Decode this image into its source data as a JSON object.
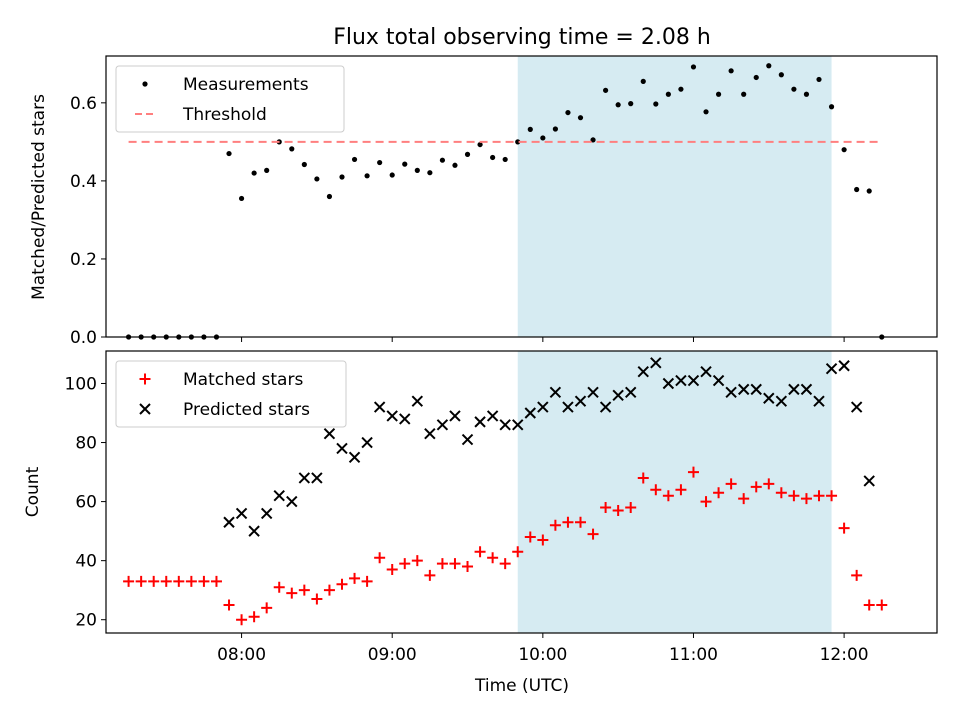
{
  "chart_data": {
    "title": "Flux total observing time = 2.08 h",
    "xlabel": "Time (UTC)",
    "x_unit": "hours UTC",
    "xlim": [
      "07:06",
      "12:37"
    ],
    "xticks": [
      {
        "time": "08:00",
        "label": "08:00"
      },
      {
        "time": "09:00",
        "label": "09:00"
      },
      {
        "time": "10:00",
        "label": "10:00"
      },
      {
        "time": "11:00",
        "label": "11:00"
      },
      {
        "time": "12:00",
        "label": "12:00"
      }
    ],
    "highlight_span": {
      "start": "09:50",
      "end": "11:55",
      "color": "#add8e6"
    },
    "panels": [
      {
        "type": "scatter",
        "ylabel": "Matched/Predicted stars",
        "ylim": [
          0,
          0.72
        ],
        "yticks": [
          0.0,
          0.2,
          0.4,
          0.6
        ],
        "ytick_labels": [
          "0.0",
          "0.2",
          "0.4",
          "0.6"
        ],
        "legend_position": "upper-left",
        "series": [
          {
            "name": "Measurements",
            "marker": "dot",
            "color": "#000000",
            "points": [
              [
                "07:15",
                0.0
              ],
              [
                "07:20",
                0.0
              ],
              [
                "07:25",
                0.0
              ],
              [
                "07:30",
                0.0
              ],
              [
                "07:35",
                0.0
              ],
              [
                "07:40",
                0.0
              ],
              [
                "07:45",
                0.0
              ],
              [
                "07:50",
                0.0
              ],
              [
                "07:55",
                0.47
              ],
              [
                "08:00",
                0.355
              ],
              [
                "08:05",
                0.42
              ],
              [
                "08:10",
                0.427
              ],
              [
                "08:15",
                0.5
              ],
              [
                "08:20",
                0.482
              ],
              [
                "08:25",
                0.442
              ],
              [
                "08:30",
                0.405
              ],
              [
                "08:35",
                0.36
              ],
              [
                "08:40",
                0.41
              ],
              [
                "08:45",
                0.455
              ],
              [
                "08:50",
                0.413
              ],
              [
                "08:55",
                0.447
              ],
              [
                "09:00",
                0.415
              ],
              [
                "09:05",
                0.443
              ],
              [
                "09:10",
                0.427
              ],
              [
                "09:15",
                0.421
              ],
              [
                "09:20",
                0.453
              ],
              [
                "09:25",
                0.44
              ],
              [
                "09:30",
                0.468
              ],
              [
                "09:35",
                0.493
              ],
              [
                "09:40",
                0.46
              ],
              [
                "09:45",
                0.455
              ],
              [
                "09:50",
                0.5
              ],
              [
                "09:55",
                0.532
              ],
              [
                "10:00",
                0.51
              ],
              [
                "10:05",
                0.533
              ],
              [
                "10:10",
                0.575
              ],
              [
                "10:15",
                0.562
              ],
              [
                "10:20",
                0.505
              ],
              [
                "10:25",
                0.632
              ],
              [
                "10:30",
                0.595
              ],
              [
                "10:35",
                0.598
              ],
              [
                "10:40",
                0.655
              ],
              [
                "10:45",
                0.597
              ],
              [
                "10:50",
                0.622
              ],
              [
                "10:55",
                0.635
              ],
              [
                "11:00",
                0.692
              ],
              [
                "11:05",
                0.577
              ],
              [
                "11:10",
                0.622
              ],
              [
                "11:15",
                0.682
              ],
              [
                "11:20",
                0.622
              ],
              [
                "11:25",
                0.665
              ],
              [
                "11:30",
                0.695
              ],
              [
                "11:35",
                0.672
              ],
              [
                "11:40",
                0.635
              ],
              [
                "11:45",
                0.622
              ],
              [
                "11:50",
                0.66
              ],
              [
                "11:55",
                0.59
              ],
              [
                "12:00",
                0.48
              ],
              [
                "12:05",
                0.378
              ],
              [
                "12:10",
                0.374
              ],
              [
                "12:15",
                0.0
              ]
            ]
          },
          {
            "name": "Threshold",
            "marker": "dashed-line",
            "color": "#ff7f7f",
            "value": 0.5,
            "x_range": [
              "07:15",
              "12:15"
            ]
          }
        ]
      },
      {
        "type": "scatter",
        "ylabel": "Count",
        "ylim": [
          15.5,
          111
        ],
        "yticks": [
          20,
          40,
          60,
          80,
          100
        ],
        "ytick_labels": [
          "20",
          "40",
          "60",
          "80",
          "100"
        ],
        "legend_position": "upper-left",
        "series": [
          {
            "name": "Matched stars",
            "marker": "plus",
            "color": "#ff0000",
            "points": [
              [
                "07:15",
                33
              ],
              [
                "07:20",
                33
              ],
              [
                "07:25",
                33
              ],
              [
                "07:30",
                33
              ],
              [
                "07:35",
                33
              ],
              [
                "07:40",
                33
              ],
              [
                "07:45",
                33
              ],
              [
                "07:50",
                33
              ],
              [
                "07:55",
                25
              ],
              [
                "08:00",
                20
              ],
              [
                "08:05",
                21
              ],
              [
                "08:10",
                24
              ],
              [
                "08:15",
                31
              ],
              [
                "08:20",
                29
              ],
              [
                "08:25",
                30
              ],
              [
                "08:30",
                27
              ],
              [
                "08:35",
                30
              ],
              [
                "08:40",
                32
              ],
              [
                "08:45",
                34
              ],
              [
                "08:50",
                33
              ],
              [
                "08:55",
                41
              ],
              [
                "09:00",
                37
              ],
              [
                "09:05",
                39
              ],
              [
                "09:10",
                40
              ],
              [
                "09:15",
                35
              ],
              [
                "09:20",
                39
              ],
              [
                "09:25",
                39
              ],
              [
                "09:30",
                38
              ],
              [
                "09:35",
                43
              ],
              [
                "09:40",
                41
              ],
              [
                "09:45",
                39
              ],
              [
                "09:50",
                43
              ],
              [
                "09:55",
                48
              ],
              [
                "10:00",
                47
              ],
              [
                "10:05",
                52
              ],
              [
                "10:10",
                53
              ],
              [
                "10:15",
                53
              ],
              [
                "10:20",
                49
              ],
              [
                "10:25",
                58
              ],
              [
                "10:30",
                57
              ],
              [
                "10:35",
                58
              ],
              [
                "10:40",
                68
              ],
              [
                "10:45",
                64
              ],
              [
                "10:50",
                62
              ],
              [
                "10:55",
                64
              ],
              [
                "11:00",
                70
              ],
              [
                "11:05",
                60
              ],
              [
                "11:10",
                63
              ],
              [
                "11:15",
                66
              ],
              [
                "11:20",
                61
              ],
              [
                "11:25",
                65
              ],
              [
                "11:30",
                66
              ],
              [
                "11:35",
                63
              ],
              [
                "11:40",
                62
              ],
              [
                "11:45",
                61
              ],
              [
                "11:50",
                62
              ],
              [
                "11:55",
                62
              ],
              [
                "12:00",
                51
              ],
              [
                "12:05",
                35
              ],
              [
                "12:10",
                25
              ],
              [
                "12:15",
                25
              ]
            ]
          },
          {
            "name": "Predicted stars",
            "marker": "x",
            "color": "#000000",
            "points": [
              [
                "07:55",
                53
              ],
              [
                "08:00",
                56
              ],
              [
                "08:05",
                50
              ],
              [
                "08:10",
                56
              ],
              [
                "08:15",
                62
              ],
              [
                "08:20",
                60
              ],
              [
                "08:25",
                68
              ],
              [
                "08:30",
                68
              ],
              [
                "08:35",
                83
              ],
              [
                "08:40",
                78
              ],
              [
                "08:45",
                75
              ],
              [
                "08:50",
                80
              ],
              [
                "08:55",
                92
              ],
              [
                "09:00",
                89
              ],
              [
                "09:05",
                88
              ],
              [
                "09:10",
                94
              ],
              [
                "09:15",
                83
              ],
              [
                "09:20",
                86
              ],
              [
                "09:25",
                89
              ],
              [
                "09:30",
                81
              ],
              [
                "09:35",
                87
              ],
              [
                "09:40",
                89
              ],
              [
                "09:45",
                86
              ],
              [
                "09:50",
                86
              ],
              [
                "09:55",
                90
              ],
              [
                "10:00",
                92
              ],
              [
                "10:05",
                97
              ],
              [
                "10:10",
                92
              ],
              [
                "10:15",
                94
              ],
              [
                "10:20",
                97
              ],
              [
                "10:25",
                92
              ],
              [
                "10:30",
                96
              ],
              [
                "10:35",
                97
              ],
              [
                "10:40",
                104
              ],
              [
                "10:45",
                107
              ],
              [
                "10:50",
                100
              ],
              [
                "10:55",
                101
              ],
              [
                "11:00",
                101
              ],
              [
                "11:05",
                104
              ],
              [
                "11:10",
                101
              ],
              [
                "11:15",
                97
              ],
              [
                "11:20",
                98
              ],
              [
                "11:25",
                98
              ],
              [
                "11:30",
                95
              ],
              [
                "11:35",
                94
              ],
              [
                "11:40",
                98
              ],
              [
                "11:45",
                98
              ],
              [
                "11:50",
                94
              ],
              [
                "11:55",
                105
              ],
              [
                "12:00",
                106
              ],
              [
                "12:05",
                92
              ],
              [
                "12:10",
                67
              ]
            ]
          }
        ]
      }
    ]
  }
}
